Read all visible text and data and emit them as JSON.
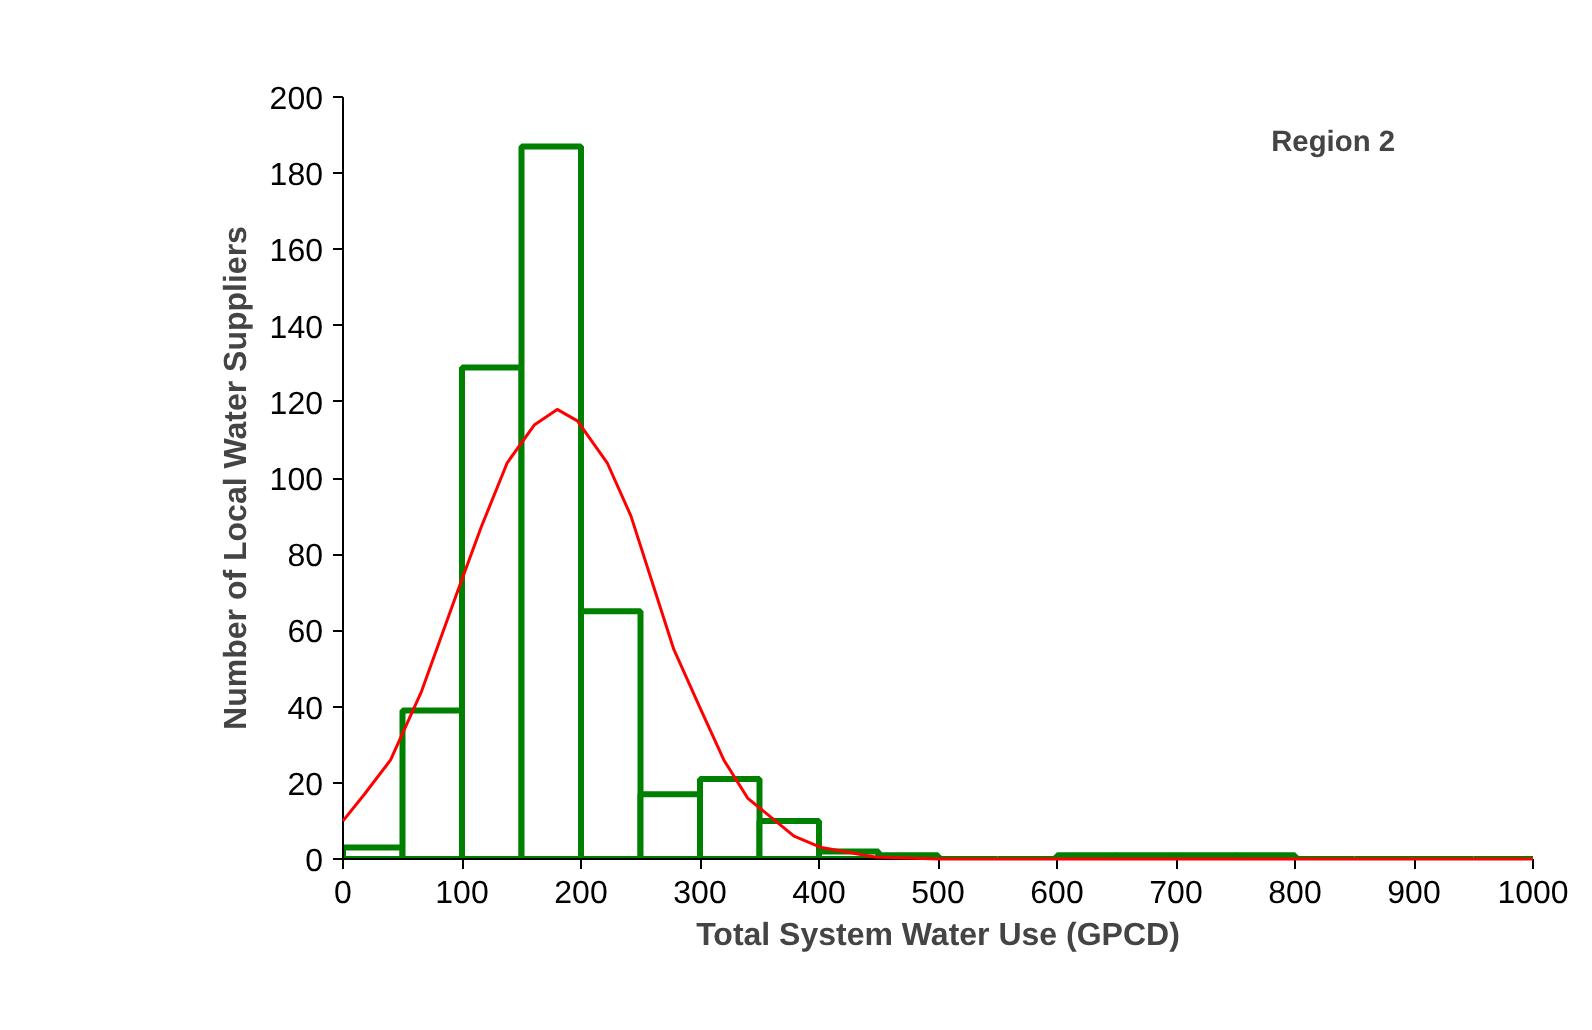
{
  "chart_data": {
    "type": "histogram",
    "title": "Region 2",
    "xlabel": "Total System Water Use (GPCD)",
    "ylabel": "Number of Local Water Suppliers",
    "bins": [
      0,
      50,
      100,
      150,
      200,
      250,
      300,
      350,
      400,
      450,
      500,
      550,
      600,
      650,
      700,
      750,
      800,
      850,
      900,
      950,
      1000
    ],
    "values": [
      3,
      39,
      129,
      187,
      65,
      17,
      21,
      10,
      2,
      1,
      0,
      0,
      1,
      1,
      1,
      1,
      0,
      0,
      0,
      0
    ],
    "color": "#008000",
    "series": [
      {
        "type": "line",
        "color": "#ff0000",
        "x": [
          0,
          18,
          40,
          66,
          96,
          116,
          138,
          161,
          180,
          197,
          222,
          242,
          278,
          301,
          320,
          340,
          379,
          402,
          447,
          500,
          600,
          700,
          800,
          900,
          1000
        ],
        "values": [
          10,
          17,
          26,
          44,
          70,
          87,
          104,
          114,
          118,
          115,
          104,
          90,
          55,
          39,
          26,
          16,
          6,
          3,
          0.5,
          0,
          0,
          0,
          0,
          0,
          0
        ]
      }
    ],
    "xlim": [
      0,
      1000
    ],
    "ylim": [
      0,
      200
    ],
    "xticks": [
      0,
      100,
      200,
      300,
      400,
      500,
      600,
      700,
      800,
      900,
      1000
    ],
    "yticks": [
      0,
      20,
      40,
      60,
      80,
      100,
      120,
      140,
      160,
      180,
      200
    ],
    "grid": false
  }
}
